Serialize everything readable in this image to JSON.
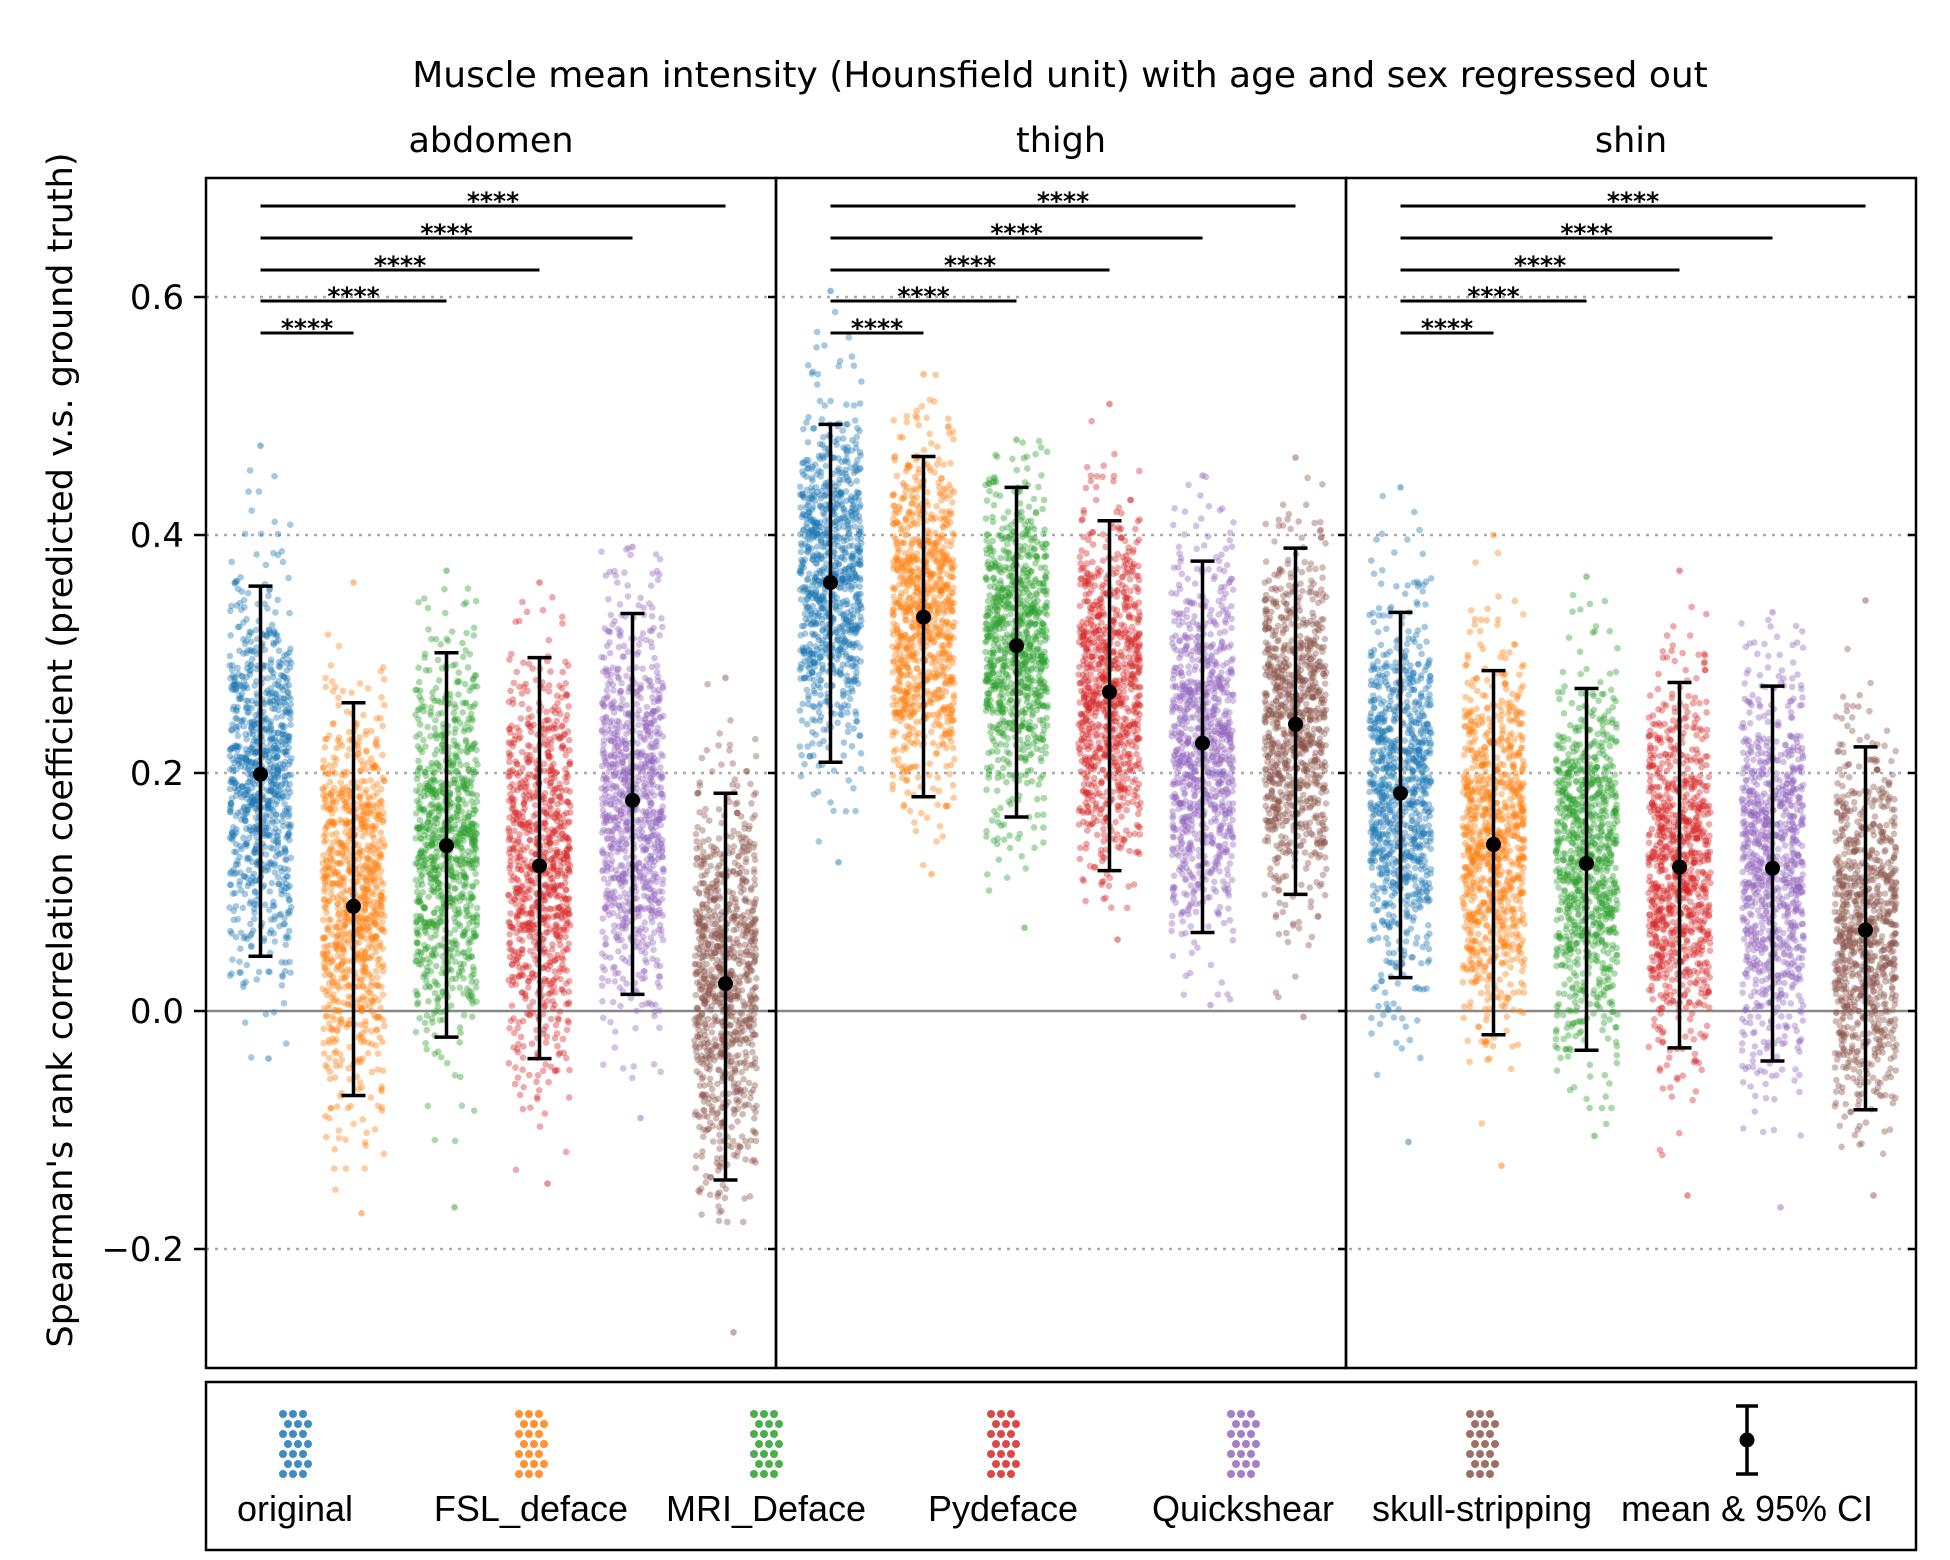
{
  "chart_data": {
    "type": "scatter",
    "title": "Muscle mean intensity (Hounsfield unit) with age and sex regressed out",
    "ylabel": "Spearman's rank correlation coefficient (predicted v.s. ground truth)",
    "ylim": [
      -0.3,
      0.7
    ],
    "yticks": [
      -0.2,
      0.0,
      0.2,
      0.4,
      0.6
    ],
    "ytick_labels": [
      "−0.2",
      "0.0",
      "0.2",
      "0.4",
      "0.6"
    ],
    "grid": "horizontal dotted",
    "legend_placement": "bottom",
    "series": [
      {
        "name": "original",
        "color": "#1f77b4"
      },
      {
        "name": "FSL_deface",
        "color": "#ff7f0e"
      },
      {
        "name": "MRI_Deface",
        "color": "#2ca02c"
      },
      {
        "name": "Pydeface",
        "color": "#d62728"
      },
      {
        "name": "Quickshear",
        "color": "#9467bd"
      },
      {
        "name": "skull-stripping",
        "color": "#8c564b"
      }
    ],
    "summary_label": "mean & 95% CI",
    "significance_label": "****",
    "panels": [
      {
        "name": "abdomen",
        "groups": [
          {
            "series": "original",
            "mean": 0.199,
            "ci": [
              0.046,
              0.357
            ],
            "range": [
              -0.04,
              0.475
            ]
          },
          {
            "series": "FSL_deface",
            "mean": 0.088,
            "ci": [
              -0.071,
              0.259
            ],
            "range": [
              -0.17,
              0.36
            ]
          },
          {
            "series": "MRI_Deface",
            "mean": 0.139,
            "ci": [
              -0.022,
              0.301
            ],
            "range": [
              -0.165,
              0.37
            ]
          },
          {
            "series": "Pydeface",
            "mean": 0.122,
            "ci": [
              -0.04,
              0.297
            ],
            "range": [
              -0.145,
              0.36
            ]
          },
          {
            "series": "Quickshear",
            "mean": 0.177,
            "ci": [
              0.014,
              0.334
            ],
            "range": [
              -0.09,
              0.39
            ]
          },
          {
            "series": "skull-stripping",
            "mean": 0.023,
            "ci": [
              -0.142,
              0.183
            ],
            "range": [
              -0.27,
              0.28
            ]
          }
        ]
      },
      {
        "name": "thigh",
        "groups": [
          {
            "series": "original",
            "mean": 0.36,
            "ci": [
              0.209,
              0.493
            ],
            "range": [
              0.125,
              0.605
            ]
          },
          {
            "series": "FSL_deface",
            "mean": 0.331,
            "ci": [
              0.18,
              0.466
            ],
            "range": [
              0.115,
              0.535
            ]
          },
          {
            "series": "MRI_Deface",
            "mean": 0.307,
            "ci": [
              0.163,
              0.44
            ],
            "range": [
              0.07,
              0.48
            ]
          },
          {
            "series": "Pydeface",
            "mean": 0.268,
            "ci": [
              0.118,
              0.412
            ],
            "range": [
              0.06,
              0.51
            ]
          },
          {
            "series": "Quickshear",
            "mean": 0.225,
            "ci": [
              0.066,
              0.378
            ],
            "range": [
              0.005,
              0.45
            ]
          },
          {
            "series": "skull-stripping",
            "mean": 0.241,
            "ci": [
              0.098,
              0.389
            ],
            "range": [
              -0.005,
              0.465
            ]
          }
        ]
      },
      {
        "name": "shin",
        "groups": [
          {
            "series": "original",
            "mean": 0.183,
            "ci": [
              0.028,
              0.335
            ],
            "range": [
              -0.11,
              0.44
            ]
          },
          {
            "series": "FSL_deface",
            "mean": 0.14,
            "ci": [
              -0.02,
              0.286
            ],
            "range": [
              -0.13,
              0.4
            ]
          },
          {
            "series": "MRI_Deface",
            "mean": 0.124,
            "ci": [
              -0.033,
              0.271
            ],
            "range": [
              -0.105,
              0.365
            ]
          },
          {
            "series": "Pydeface",
            "mean": 0.121,
            "ci": [
              -0.031,
              0.276
            ],
            "range": [
              -0.155,
              0.37
            ]
          },
          {
            "series": "Quickshear",
            "mean": 0.12,
            "ci": [
              -0.042,
              0.273
            ],
            "range": [
              -0.165,
              0.335
            ]
          },
          {
            "series": "skull-stripping",
            "mean": 0.068,
            "ci": [
              -0.083,
              0.222
            ],
            "range": [
              -0.155,
              0.345
            ]
          }
        ]
      }
    ],
    "comparisons": [
      {
        "from": "original",
        "to": "FSL_deface",
        "label": "****"
      },
      {
        "from": "original",
        "to": "MRI_Deface",
        "label": "****"
      },
      {
        "from": "original",
        "to": "Pydeface",
        "label": "****"
      },
      {
        "from": "original",
        "to": "Quickshear",
        "label": "****"
      },
      {
        "from": "original",
        "to": "skull-stripping",
        "label": "****"
      }
    ]
  }
}
